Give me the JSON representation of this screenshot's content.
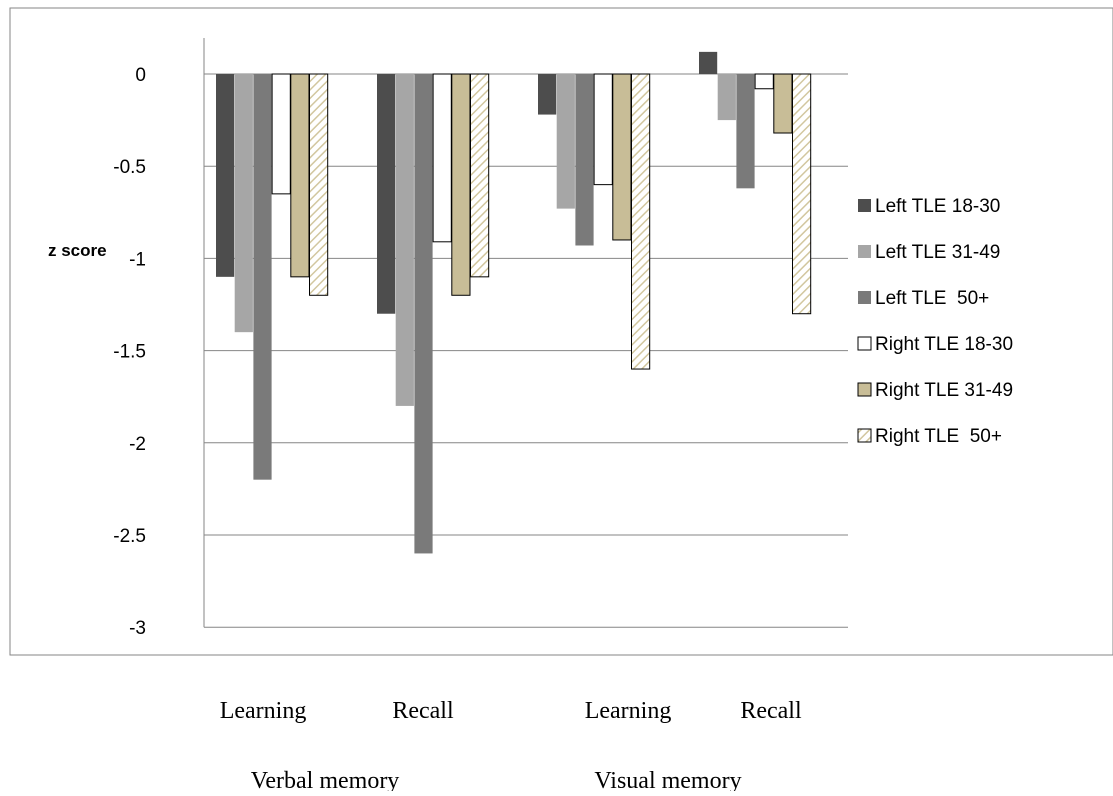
{
  "chart_data": {
    "type": "bar",
    "ylabel": "z score",
    "ylim": [
      -3,
      0
    ],
    "yticks": [
      0,
      -0.5,
      -1,
      -1.5,
      -2,
      -2.5,
      -3
    ],
    "grid": true,
    "legend_position": "right",
    "categories": [
      "Learning",
      "Recall",
      "Learning",
      "Recall"
    ],
    "groups": [
      {
        "label": "Verbal memory",
        "categories": [
          0,
          1
        ]
      },
      {
        "label": "Visual memory",
        "categories": [
          2,
          3
        ]
      }
    ],
    "series": [
      {
        "name": "Left TLE 18-30",
        "values": [
          -1.1,
          -1.3,
          -0.22,
          0.12
        ],
        "color": "#4d4d4d",
        "pattern": "solid"
      },
      {
        "name": "Left TLE 31-49",
        "values": [
          -1.4,
          -1.8,
          -0.73,
          -0.25
        ],
        "color": "#a6a6a6",
        "pattern": "solid"
      },
      {
        "name": "Left TLE  50+",
        "values": [
          -2.2,
          -2.6,
          -0.93,
          -0.62
        ],
        "color": "#7a7a7a",
        "pattern": "solid"
      },
      {
        "name": "Right TLE 18-30",
        "values": [
          -0.65,
          -0.91,
          -0.6,
          -0.08
        ],
        "color": "#ffffff",
        "pattern": "solid"
      },
      {
        "name": "Right TLE 31-49",
        "values": [
          -1.1,
          -1.2,
          -0.9,
          -0.32
        ],
        "color": "#c8bd97",
        "pattern": "solid"
      },
      {
        "name": "Right TLE  50+",
        "values": [
          -1.2,
          -1.1,
          -1.6,
          -1.3
        ],
        "color": "#e6dfc4",
        "pattern": "hatch"
      }
    ]
  }
}
